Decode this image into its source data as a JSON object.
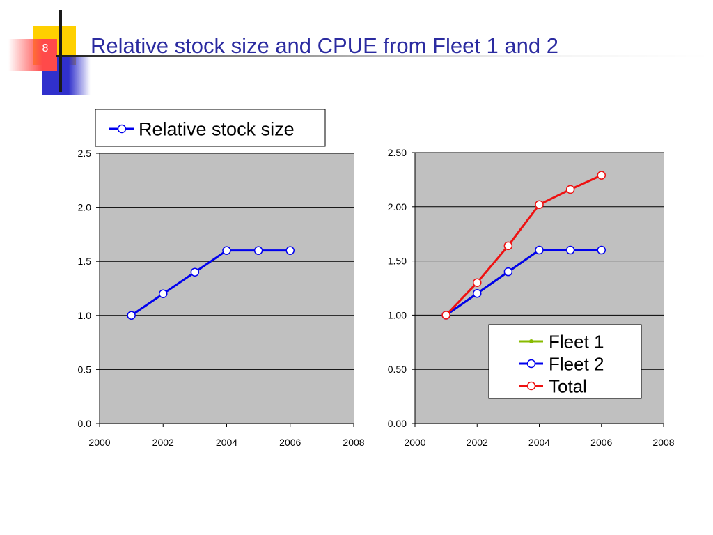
{
  "slide": {
    "number": "8",
    "title": "Relative stock size and CPUE from Fleet 1 and 2"
  },
  "colors": {
    "title": "#2b2ba0",
    "plot_background": "#c0c0c0",
    "series_blue": "#0000ee",
    "series_red": "#ee1111",
    "series_green": "#88bb00",
    "deco_yellow": "#ffd000",
    "deco_blue": "#3030cc",
    "deco_red": "#ff4444"
  },
  "chart_data": [
    {
      "type": "line",
      "title": "",
      "xlabel": "",
      "ylabel": "",
      "xlim": [
        2000,
        2008
      ],
      "ylim": [
        0,
        2.5
      ],
      "x_ticks": [
        "2000",
        "2002",
        "2004",
        "2006",
        "2008"
      ],
      "y_ticks": [
        "0.0",
        "0.5",
        "1.0",
        "1.5",
        "2.0",
        "2.5"
      ],
      "grid": "horizontal",
      "legend": {
        "placement": "top-outside",
        "entries": [
          "Relative stock size"
        ]
      },
      "series": [
        {
          "name": "Relative stock size",
          "color": "#0000ee",
          "marker": "open-circle",
          "x": [
            2001,
            2002,
            2003,
            2004,
            2005,
            2006
          ],
          "y": [
            1.0,
            1.2,
            1.4,
            1.6,
            1.6,
            1.6
          ]
        }
      ]
    },
    {
      "type": "line",
      "title": "",
      "xlabel": "",
      "ylabel": "",
      "xlim": [
        2000,
        2008
      ],
      "ylim": [
        0,
        2.5
      ],
      "x_ticks": [
        "2000",
        "2002",
        "2004",
        "2006",
        "2008"
      ],
      "y_ticks": [
        "0.00",
        "0.50",
        "1.00",
        "1.50",
        "2.00",
        "2.50"
      ],
      "grid": "horizontal",
      "legend": {
        "placement": "bottom-right",
        "entries": [
          "Fleet 1",
          "Fleet 2",
          "Total"
        ]
      },
      "series": [
        {
          "name": "Fleet 1",
          "color": "#88bb00",
          "marker": "dot",
          "x": [
            2001,
            2002,
            2003,
            2004,
            2005,
            2006
          ],
          "y": [
            1.0,
            1.2,
            1.4,
            1.6,
            1.6,
            1.6
          ]
        },
        {
          "name": "Fleet 2",
          "color": "#0000ee",
          "marker": "open-circle",
          "x": [
            2001,
            2002,
            2003,
            2004,
            2005,
            2006
          ],
          "y": [
            1.0,
            1.2,
            1.4,
            1.6,
            1.6,
            1.6
          ]
        },
        {
          "name": "Total",
          "color": "#ee1111",
          "marker": "open-circle",
          "x": [
            2001,
            2002,
            2003,
            2004,
            2005,
            2006
          ],
          "y": [
            1.0,
            1.3,
            1.64,
            2.02,
            2.16,
            2.29
          ]
        }
      ]
    }
  ]
}
